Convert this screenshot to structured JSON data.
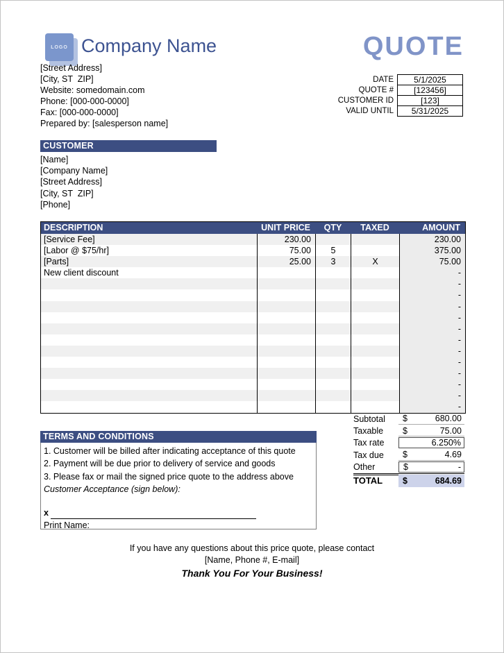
{
  "header": {
    "logo_text": "LOGO",
    "company_name": "Company Name",
    "quote_title": "QUOTE",
    "address_lines": [
      "[Street Address]",
      "[City, ST  ZIP]",
      "Website: somedomain.com",
      "Phone: [000-000-0000]",
      "Fax: [000-000-0000]",
      "Prepared by: [salesperson name]"
    ]
  },
  "meta": {
    "rows": [
      {
        "label": "DATE",
        "value": "5/1/2025"
      },
      {
        "label": "QUOTE #",
        "value": "[123456]"
      },
      {
        "label": "CUSTOMER ID",
        "value": "[123]"
      },
      {
        "label": "VALID UNTIL",
        "value": "5/31/2025"
      }
    ]
  },
  "customer": {
    "title": "CUSTOMER",
    "lines": [
      "[Name]",
      "[Company Name]",
      "[Street Address]",
      "[City, ST  ZIP]",
      "[Phone]"
    ]
  },
  "items_table": {
    "headers": {
      "description": "DESCRIPTION",
      "unit_price": "UNIT PRICE",
      "qty": "QTY",
      "taxed": "TAXED",
      "amount": "AMOUNT"
    },
    "rows": [
      {
        "description": "[Service Fee]",
        "unit_price": "230.00",
        "qty": "",
        "taxed": "",
        "amount": "230.00"
      },
      {
        "description": "[Labor @ $75/hr]",
        "unit_price": "75.00",
        "qty": "5",
        "taxed": "",
        "amount": "375.00"
      },
      {
        "description": "[Parts]",
        "unit_price": "25.00",
        "qty": "3",
        "taxed": "X",
        "amount": "75.00"
      },
      {
        "description": "New client discount",
        "unit_price": "",
        "qty": "",
        "taxed": "",
        "amount": "-"
      },
      {
        "description": "",
        "unit_price": "",
        "qty": "",
        "taxed": "",
        "amount": "-"
      },
      {
        "description": "",
        "unit_price": "",
        "qty": "",
        "taxed": "",
        "amount": "-"
      },
      {
        "description": "",
        "unit_price": "",
        "qty": "",
        "taxed": "",
        "amount": "-"
      },
      {
        "description": "",
        "unit_price": "",
        "qty": "",
        "taxed": "",
        "amount": "-"
      },
      {
        "description": "",
        "unit_price": "",
        "qty": "",
        "taxed": "",
        "amount": "-"
      },
      {
        "description": "",
        "unit_price": "",
        "qty": "",
        "taxed": "",
        "amount": "-"
      },
      {
        "description": "",
        "unit_price": "",
        "qty": "",
        "taxed": "",
        "amount": "-"
      },
      {
        "description": "",
        "unit_price": "",
        "qty": "",
        "taxed": "",
        "amount": "-"
      },
      {
        "description": "",
        "unit_price": "",
        "qty": "",
        "taxed": "",
        "amount": "-"
      },
      {
        "description": "",
        "unit_price": "",
        "qty": "",
        "taxed": "",
        "amount": "-"
      },
      {
        "description": "",
        "unit_price": "",
        "qty": "",
        "taxed": "",
        "amount": "-"
      },
      {
        "description": "",
        "unit_price": "",
        "qty": "",
        "taxed": "",
        "amount": "-"
      }
    ]
  },
  "totals": {
    "subtotal": {
      "label": "Subtotal",
      "currency": "$",
      "value": "680.00"
    },
    "taxable": {
      "label": "Taxable",
      "currency": "$",
      "value": "75.00"
    },
    "tax_rate": {
      "label": "Tax rate",
      "value": "6.250%"
    },
    "tax_due": {
      "label": "Tax due",
      "currency": "$",
      "value": "4.69"
    },
    "other": {
      "label": "Other",
      "currency": "$",
      "value": "-"
    },
    "total": {
      "label": "TOTAL",
      "currency": "$",
      "value": "684.69"
    }
  },
  "terms": {
    "title": "TERMS AND CONDITIONS",
    "lines": [
      "1. Customer will be billed after indicating acceptance of this quote",
      "2. Payment will be due prior to delivery of service and goods",
      "3. Please fax or mail the signed price quote to the address above"
    ],
    "acceptance_label": "Customer Acceptance (sign below):",
    "signature_prefix": "x",
    "print_name_label": "Print Name:"
  },
  "footer": {
    "contact_line": "If you have any questions about this price quote, please contact",
    "contact_placeholder": "[Name, Phone #, E-mail]",
    "thank_you": "Thank You For Your Business!"
  },
  "colors": {
    "header_bar": "#3C4E82",
    "quote_title": "#8094C8",
    "company_name": "#3D5391",
    "logo_fill": "#7B96CC",
    "logo_shadow": "#B3C2E1",
    "row_stripe": "#F0F0F0",
    "amount_column": "#ECECEC",
    "total_highlight": "#CDD3EA"
  }
}
